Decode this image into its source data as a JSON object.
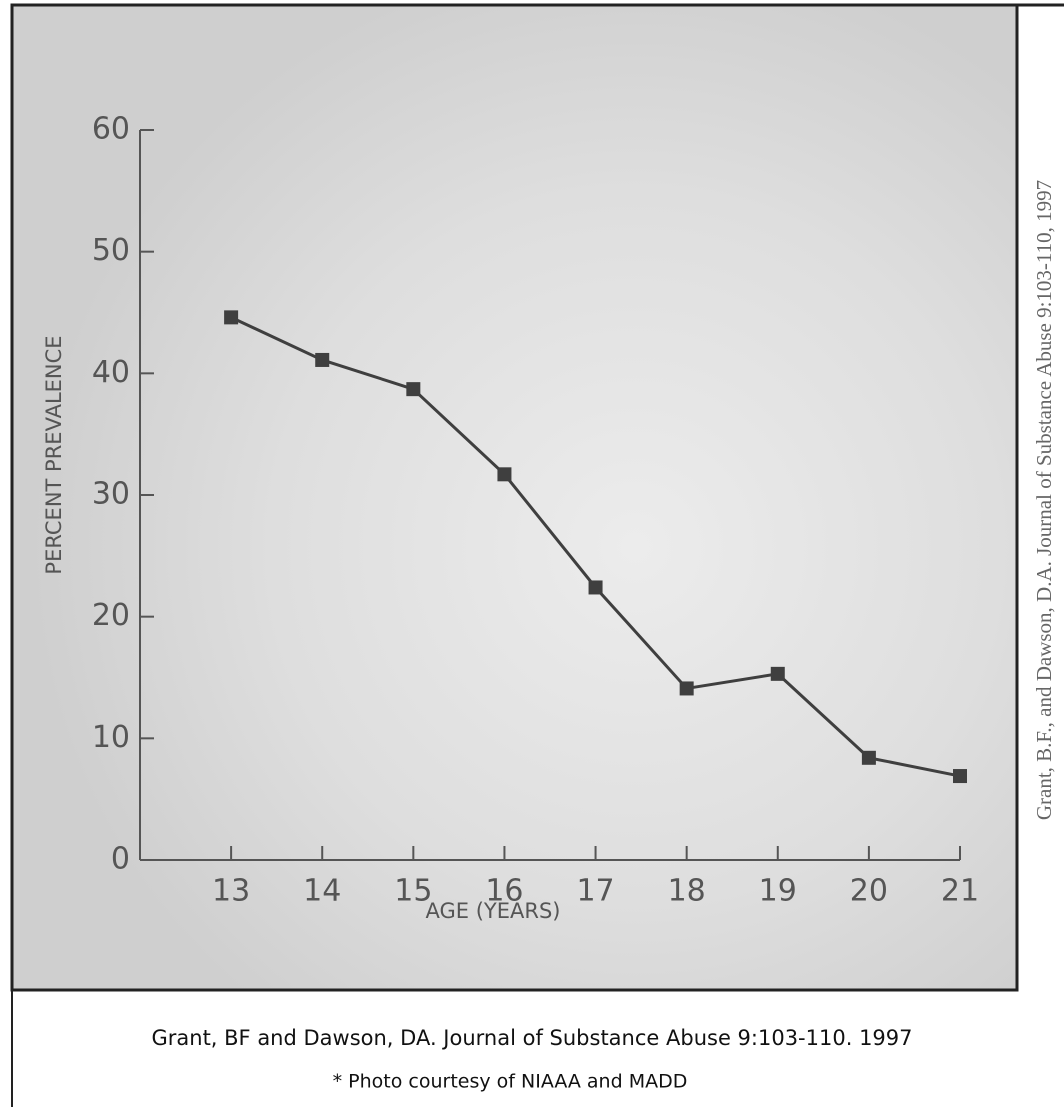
{
  "chart_data": {
    "type": "line",
    "x": [
      13,
      14,
      15,
      16,
      17,
      18,
      19,
      20,
      21
    ],
    "series": [
      {
        "color": "#3f3f3f",
        "values": [
          44.6,
          41.1,
          38.7,
          31.7,
          22.4,
          14.1,
          15.3,
          8.4,
          6.9
        ]
      }
    ],
    "xlim": [
      12,
      21
    ],
    "xticks": [
      13,
      14,
      15,
      16,
      17,
      18,
      19,
      20,
      21
    ],
    "ylim": [
      0,
      60
    ],
    "yticks": [
      0,
      10,
      20,
      30,
      40,
      50,
      60
    ],
    "x_label": "AGE (YEARS)",
    "y_label": "PERCENT PREVALENCE",
    "annotations": [
      "Grant, B.F., and Dawson, D.A. Journal of Substance Abuse 9:103-110, 1997",
      "Grant, BF and Dawson, DA. Journal of Substance Abuse 9:103-110. 1997",
      "* Photo courtesy of NIAAA and MADD"
    ]
  }
}
